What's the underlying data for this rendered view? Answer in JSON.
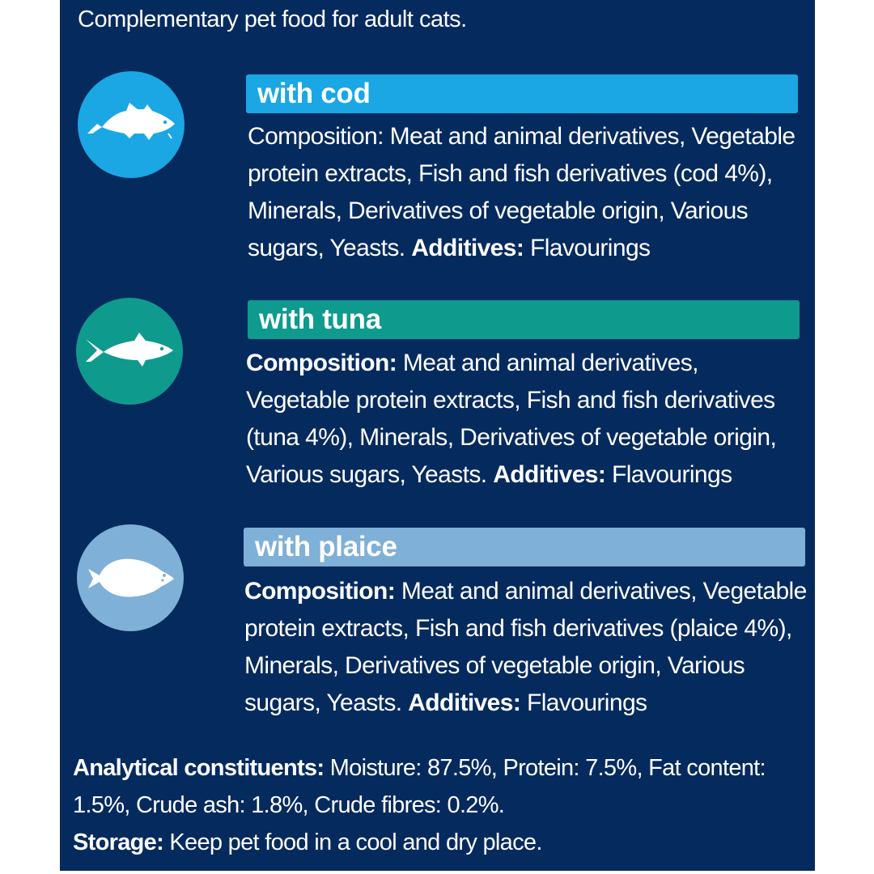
{
  "intro": "Complementary pet food for adult cats.",
  "colors": {
    "panel_bg": "#052a5e",
    "cod": "#1aa7e4",
    "tuna": "#0f9a8e",
    "plaice": "#7fb0d8"
  },
  "varieties": [
    {
      "icon": "cod-fish-icon",
      "header": "with cod",
      "comp_label": "Composition:",
      "comp_text": " Meat and animal derivatives, Vegetable protein extracts, Fish and fish derivatives (cod 4%), Minerals, Derivatives of vegetable origin, Various sugars, Yeasts. ",
      "additives_label": "Additives:",
      "additives_text": " Flavourings"
    },
    {
      "icon": "tuna-fish-icon",
      "header": "with tuna",
      "comp_label": "Composition:",
      "comp_text": " Meat and animal derivatives, Vegetable protein extracts, Fish and fish derivatives (tuna 4%), Minerals, Derivatives of vegetable origin, Various sugars, Yeasts. ",
      "additives_label": "Additives:",
      "additives_text": " Flavourings"
    },
    {
      "icon": "plaice-fish-icon",
      "header": "with plaice",
      "comp_label": "Composition:",
      "comp_text": " Meat and animal derivatives, Vegetable protein extracts, Fish and fish derivatives (plaice 4%), Minerals, Derivatives of vegetable origin, Various sugars, Yeasts. ",
      "additives_label": "Additives:",
      "additives_text": " Flavourings"
    }
  ],
  "analytical": {
    "label": "Analytical constituents:",
    "text": " Moisture: 87.5%, Protein: 7.5%, Fat content: 1.5%, Crude ash: 1.8%, Crude fibres: 0.2%."
  },
  "storage": {
    "label": "Storage:",
    "text": " Keep pet food in a cool and dry place."
  }
}
